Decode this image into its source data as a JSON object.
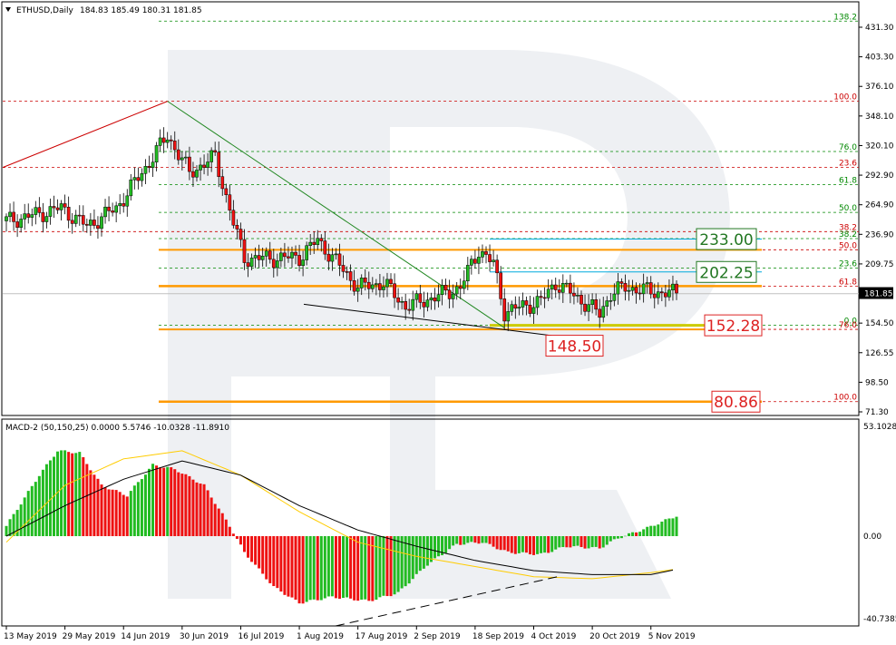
{
  "header": {
    "symbol_label": "ETHUSD,Daily",
    "ohlc_label": "184.83 185.49 180.31 181.85",
    "macd_label": "MACD-2 (50,150,25) 0.0000 5.5746 -10.0328 -11.8910"
  },
  "colors": {
    "bull": "#22bb22",
    "bear": "#ee1111",
    "candle_outline": "#000000",
    "fib_red": "#cc0000",
    "fib_green": "#008800",
    "orange_level": "#ff9900",
    "cyan_level": "#00aadd",
    "yellow_level": "#cccc00",
    "macd_signal": "#000000",
    "macd_avg": "#ffcc00",
    "price_box_green": "#227722",
    "price_box_red": "#dd2222"
  },
  "chart_data": [
    {
      "type": "candlestick",
      "name": "ETHUSD Daily",
      "x_ticks": [
        "13 May 2019",
        "29 May 2019",
        "14 Jun 2019",
        "30 Jun 2019",
        "16 Jul 2019",
        "1 Aug 2019",
        "17 Aug 2019",
        "2 Sep 2019",
        "18 Sep 2019",
        "4 Oct 2019",
        "20 Oct 2019",
        "5 Nov 2019"
      ],
      "y_ticks": [
        "431.30",
        "403.30",
        "376.10",
        "348.10",
        "320.10",
        "292.90",
        "264.90",
        "236.90",
        "209.75",
        "181.85",
        "154.50",
        "126.55",
        "98.50",
        "71.30"
      ],
      "y_range": [
        71.3,
        431.3
      ],
      "current_price": "181.85",
      "anchors": [
        {
          "date": "2019-05-13",
          "price": 250
        },
        {
          "date": "2019-05-20",
          "price": 255
        },
        {
          "date": "2019-05-28",
          "price": 262
        },
        {
          "date": "2019-06-04",
          "price": 245
        },
        {
          "date": "2019-06-12",
          "price": 262
        },
        {
          "date": "2019-06-20",
          "price": 300
        },
        {
          "date": "2019-06-26",
          "price": 330
        },
        {
          "date": "2019-07-02",
          "price": 295
        },
        {
          "date": "2019-07-09",
          "price": 310
        },
        {
          "date": "2019-07-14",
          "price": 248
        },
        {
          "date": "2019-07-17",
          "price": 215
        },
        {
          "date": "2019-07-24",
          "price": 215
        },
        {
          "date": "2019-08-01",
          "price": 216
        },
        {
          "date": "2019-08-06",
          "price": 232
        },
        {
          "date": "2019-08-12",
          "price": 208
        },
        {
          "date": "2019-08-17",
          "price": 188
        },
        {
          "date": "2019-08-24",
          "price": 192
        },
        {
          "date": "2019-08-30",
          "price": 170
        },
        {
          "date": "2019-09-08",
          "price": 180
        },
        {
          "date": "2019-09-14",
          "price": 188
        },
        {
          "date": "2019-09-19",
          "price": 223
        },
        {
          "date": "2019-09-23",
          "price": 210
        },
        {
          "date": "2019-09-26",
          "price": 165
        },
        {
          "date": "2019-10-06",
          "price": 175
        },
        {
          "date": "2019-10-10",
          "price": 192
        },
        {
          "date": "2019-10-14",
          "price": 183
        },
        {
          "date": "2019-10-22",
          "price": 163
        },
        {
          "date": "2019-10-25",
          "price": 182
        },
        {
          "date": "2019-10-29",
          "price": 188
        },
        {
          "date": "2019-11-05",
          "price": 184
        },
        {
          "date": "2019-11-12",
          "price": 182
        }
      ],
      "fibonacci_levels": [
        {
          "label": "138.2",
          "price": 437.0,
          "color": "green"
        },
        {
          "label": "100.0",
          "price": 362.0,
          "color": "red"
        },
        {
          "label": "76.0",
          "price": 315.0,
          "color": "green"
        },
        {
          "label": "23.6",
          "price": 300.0,
          "color": "red"
        },
        {
          "label": "61.8",
          "price": 284.0,
          "color": "green"
        },
        {
          "label": "50.0",
          "price": 258.0,
          "color": "green"
        },
        {
          "label": "38.2",
          "price": 240.0,
          "color": "red"
        },
        {
          "label": "38.2",
          "price": 233.5,
          "color": "green"
        },
        {
          "label": "50.0",
          "price": 223.0,
          "color": "red"
        },
        {
          "label": "23.6",
          "price": 206.0,
          "color": "green"
        },
        {
          "label": "61.8",
          "price": 189.0,
          "color": "red"
        },
        {
          "label": "0.0",
          "price": 152.5,
          "color": "green"
        },
        {
          "label": "76.0",
          "price": 148.5,
          "color": "red"
        },
        {
          "label": "100.0",
          "price": 80.86,
          "color": "red"
        }
      ],
      "price_labels": [
        {
          "text": "233.00",
          "price": 233.0,
          "color": "green"
        },
        {
          "text": "202.25",
          "price": 202.25,
          "color": "green"
        },
        {
          "text": "148.50",
          "price": 148.5,
          "color": "red"
        },
        {
          "text": "152.28",
          "price": 152.28,
          "color": "red"
        },
        {
          "text": "80.86",
          "price": 80.86,
          "color": "red"
        }
      ]
    },
    {
      "type": "bar",
      "name": "MACD-2 (50,150,25)",
      "y_ticks": [
        "53.1028",
        "0.00",
        "-40.7385"
      ],
      "y_range": [
        -40.7385,
        53.1028
      ],
      "histogram_anchors": [
        {
          "date": "2019-05-13",
          "value": 5
        },
        {
          "date": "2019-05-22",
          "value": 30
        },
        {
          "date": "2019-05-27",
          "value": 42
        },
        {
          "date": "2019-06-02",
          "value": 41
        },
        {
          "date": "2019-06-08",
          "value": 25
        },
        {
          "date": "2019-06-15",
          "value": 20
        },
        {
          "date": "2019-06-22",
          "value": 35
        },
        {
          "date": "2019-06-28",
          "value": 33
        },
        {
          "date": "2019-07-06",
          "value": 25
        },
        {
          "date": "2019-07-13",
          "value": 5
        },
        {
          "date": "2019-07-17",
          "value": -8
        },
        {
          "date": "2019-07-25",
          "value": -25
        },
        {
          "date": "2019-08-01",
          "value": -33
        },
        {
          "date": "2019-08-10",
          "value": -30
        },
        {
          "date": "2019-08-20",
          "value": -32
        },
        {
          "date": "2019-08-28",
          "value": -28
        },
        {
          "date": "2019-09-05",
          "value": -14
        },
        {
          "date": "2019-09-13",
          "value": -4
        },
        {
          "date": "2019-09-20",
          "value": -3
        },
        {
          "date": "2019-09-27",
          "value": -8
        },
        {
          "date": "2019-10-06",
          "value": -9
        },
        {
          "date": "2019-10-13",
          "value": -5
        },
        {
          "date": "2019-10-22",
          "value": -6
        },
        {
          "date": "2019-10-27",
          "value": -1
        },
        {
          "date": "2019-11-04",
          "value": 4
        },
        {
          "date": "2019-11-12",
          "value": 10
        }
      ],
      "signal_line_anchors": [
        {
          "date": "2019-05-13",
          "value": 0
        },
        {
          "date": "2019-05-29",
          "value": 15
        },
        {
          "date": "2019-06-14",
          "value": 28
        },
        {
          "date": "2019-06-30",
          "value": 37
        },
        {
          "date": "2019-07-16",
          "value": 30
        },
        {
          "date": "2019-08-01",
          "value": 15
        },
        {
          "date": "2019-08-17",
          "value": 3
        },
        {
          "date": "2019-09-02",
          "value": -5
        },
        {
          "date": "2019-09-18",
          "value": -12
        },
        {
          "date": "2019-10-04",
          "value": -17
        },
        {
          "date": "2019-10-20",
          "value": -19
        },
        {
          "date": "2019-11-05",
          "value": -19
        },
        {
          "date": "2019-11-13",
          "value": -16
        }
      ],
      "average_line_anchors": [
        {
          "date": "2019-05-13",
          "value": -3
        },
        {
          "date": "2019-05-29",
          "value": 25
        },
        {
          "date": "2019-06-14",
          "value": 38
        },
        {
          "date": "2019-06-30",
          "value": 42
        },
        {
          "date": "2019-07-16",
          "value": 30
        },
        {
          "date": "2019-08-01",
          "value": 12
        },
        {
          "date": "2019-08-17",
          "value": -3
        },
        {
          "date": "2019-09-02",
          "value": -10
        },
        {
          "date": "2019-09-18",
          "value": -15
        },
        {
          "date": "2019-10-04",
          "value": -20
        },
        {
          "date": "2019-10-20",
          "value": -21
        },
        {
          "date": "2019-11-05",
          "value": -18
        },
        {
          "date": "2019-11-13",
          "value": -16
        }
      ]
    }
  ]
}
